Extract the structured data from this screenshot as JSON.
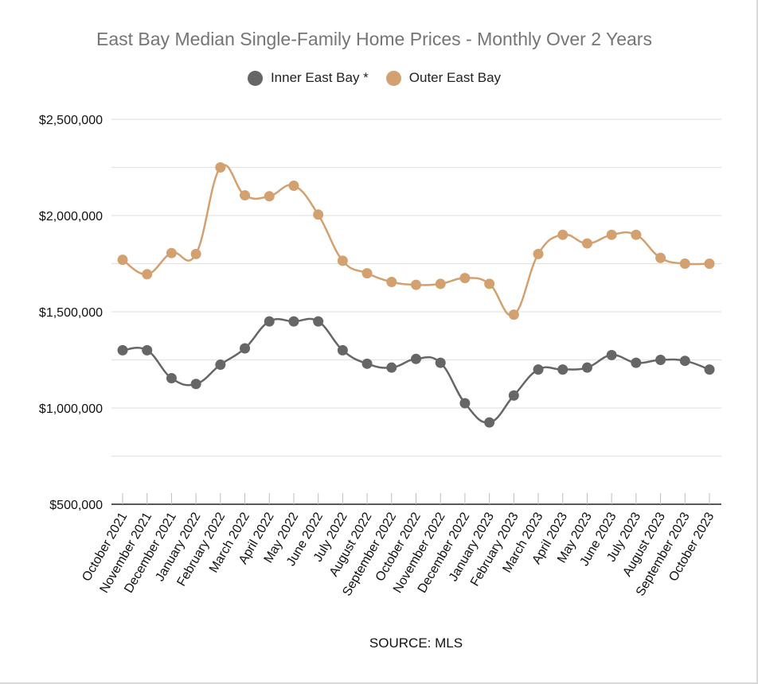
{
  "chart_data": {
    "type": "line",
    "title": "East Bay Median Single-Family Home Prices - Monthly Over 2 Years",
    "source": "SOURCE: MLS",
    "legend_position": "top",
    "grid": true,
    "ylim": [
      500000,
      2500000
    ],
    "yticks": [
      500000,
      1000000,
      1500000,
      2000000,
      2500000
    ],
    "ytick_labels": [
      "$500,000",
      "$1,000,000",
      "$1,500,000",
      "$2,000,000",
      "$2,500,000"
    ],
    "categories": [
      "October 2021",
      "November 2021",
      "December 2021",
      "January 2022",
      "February 2022",
      "March 2022",
      "April 2022",
      "May 2022",
      "June 2022",
      "July 2022",
      "August 2022",
      "September 2022",
      "October 2022",
      "November 2022",
      "December 2022",
      "January 2023",
      "February 2023",
      "March 2023",
      "April 2023",
      "May 2023",
      "June 2023",
      "July 2023",
      "August 2023",
      "September 2023",
      "October 2023"
    ],
    "series": [
      {
        "name": "Inner East Bay *",
        "color": "#666666",
        "values": [
          1300000,
          1300000,
          1155000,
          1125000,
          1225000,
          1310000,
          1450000,
          1450000,
          1450000,
          1300000,
          1230000,
          1210000,
          1255000,
          1235000,
          1025000,
          925000,
          1065000,
          1200000,
          1200000,
          1210000,
          1275000,
          1235000,
          1250000,
          1245000,
          1200000
        ]
      },
      {
        "name": "Outer East Bay",
        "color": "#d3a06f",
        "values": [
          1770000,
          1695000,
          1805000,
          1800000,
          2250000,
          2105000,
          2100000,
          2155000,
          2005000,
          1765000,
          1700000,
          1655000,
          1640000,
          1645000,
          1675000,
          1645000,
          1485000,
          1800000,
          1900000,
          1855000,
          1900000,
          1900000,
          1780000,
          1750000,
          1750000
        ]
      }
    ]
  }
}
